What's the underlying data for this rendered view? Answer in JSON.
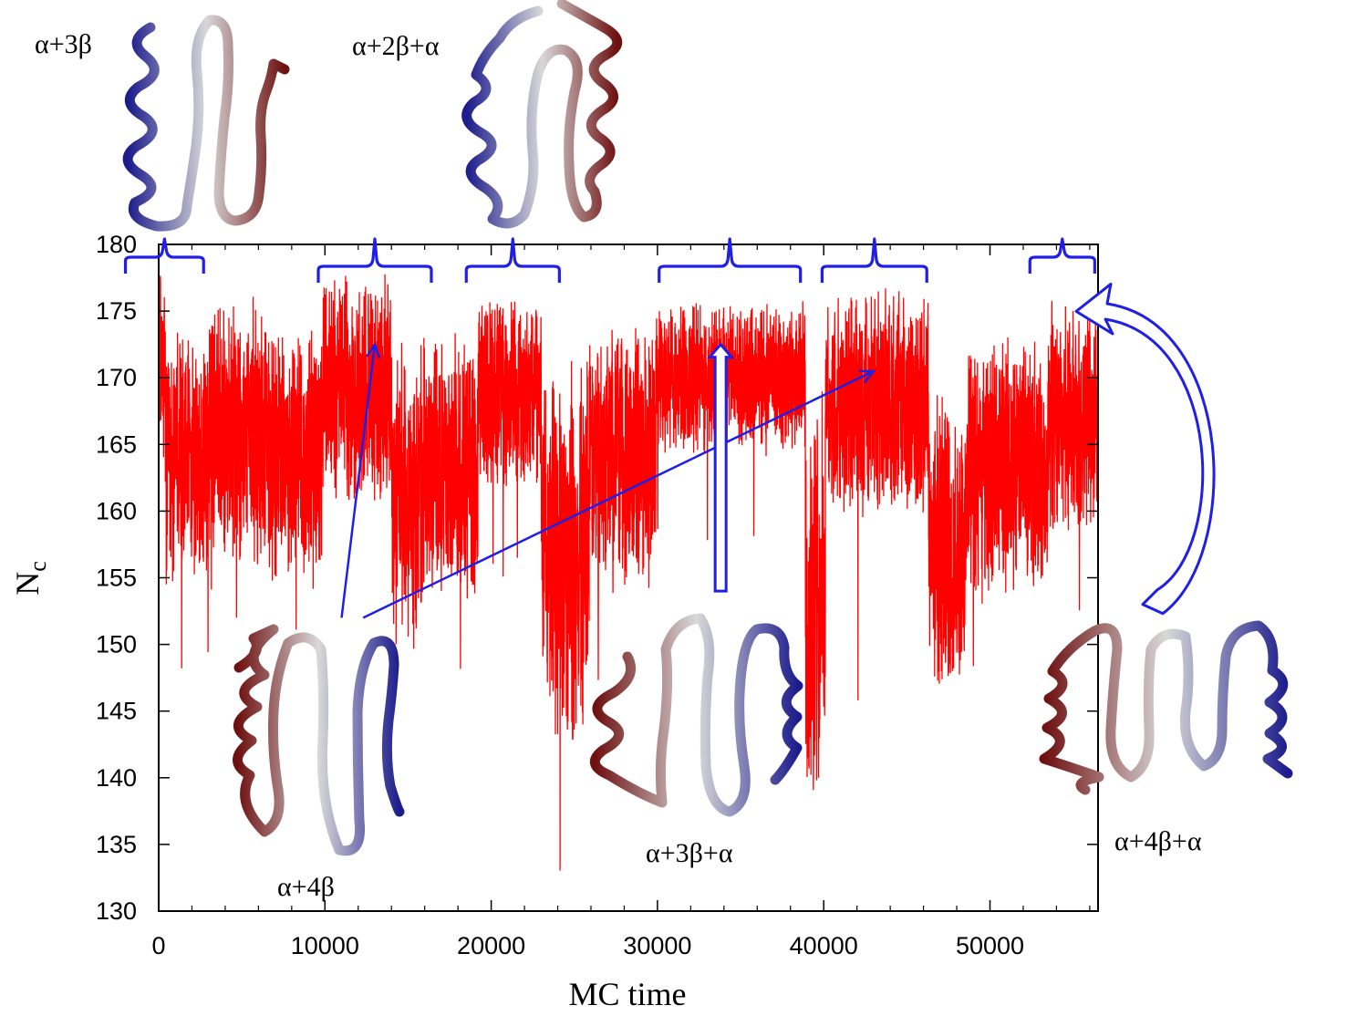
{
  "chart_data": {
    "type": "line",
    "xlabel": "MC time",
    "ylabel_main": "N",
    "ylabel_sub": "c",
    "xlim": [
      0,
      56500
    ],
    "ylim": [
      130,
      180
    ],
    "xticks": [
      0,
      10000,
      20000,
      30000,
      40000,
      50000
    ],
    "yticks": [
      130,
      135,
      140,
      145,
      150,
      155,
      160,
      165,
      170,
      175,
      180
    ],
    "grid": false,
    "series_color": "#ff0000",
    "segments": [
      {
        "x0": 0,
        "x1": 400,
        "baseline": 171,
        "spread": 5,
        "min": 149
      },
      {
        "x0": 400,
        "x1": 3200,
        "baseline": 164,
        "spread": 7,
        "min": 148
      },
      {
        "x0": 3200,
        "x1": 6600,
        "baseline": 166,
        "spread": 7,
        "min": 151
      },
      {
        "x0": 6600,
        "x1": 9800,
        "baseline": 164,
        "spread": 7,
        "min": 150
      },
      {
        "x0": 9800,
        "x1": 14000,
        "baseline": 169,
        "spread": 6,
        "min": 151
      },
      {
        "x0": 14000,
        "x1": 15900,
        "baseline": 161,
        "spread": 8,
        "min": 132
      },
      {
        "x0": 15900,
        "x1": 19200,
        "baseline": 163,
        "spread": 7,
        "min": 147
      },
      {
        "x0": 19200,
        "x1": 23000,
        "baseline": 169,
        "spread": 5,
        "min": 155
      },
      {
        "x0": 23000,
        "x1": 25900,
        "baseline": 157,
        "spread": 10,
        "min": 133
      },
      {
        "x0": 25900,
        "x1": 29900,
        "baseline": 164,
        "spread": 7,
        "min": 147
      },
      {
        "x0": 29900,
        "x1": 38900,
        "baseline": 170,
        "spread": 4,
        "min": 157
      },
      {
        "x0": 38900,
        "x1": 40100,
        "baseline": 153,
        "spread": 11,
        "min": 134
      },
      {
        "x0": 40100,
        "x1": 46300,
        "baseline": 168,
        "spread": 6,
        "min": 144
      },
      {
        "x0": 46300,
        "x1": 48500,
        "baseline": 157,
        "spread": 8,
        "min": 139
      },
      {
        "x0": 48500,
        "x1": 53500,
        "baseline": 163,
        "spread": 7,
        "min": 148
      },
      {
        "x0": 53500,
        "x1": 56500,
        "baseline": 167,
        "spread": 6,
        "min": 152
      }
    ],
    "brackets": [
      {
        "x0": -2000,
        "x1": 2700,
        "level": "upper"
      },
      {
        "x0": 9600,
        "x1": 16400,
        "level": "lower"
      },
      {
        "x0": 18500,
        "x1": 24100,
        "level": "lower"
      },
      {
        "x0": 30100,
        "x1": 38600,
        "level": "lower"
      },
      {
        "x0": 39900,
        "x1": 46200,
        "level": "lower"
      },
      {
        "x0": 52400,
        "x1": 56300,
        "level": "upper"
      }
    ],
    "bracket_color": "#1f1fe6",
    "arrows": [
      {
        "kind": "thin",
        "from": [
          11000,
          152
        ],
        "to": [
          13000,
          172.5
        ]
      },
      {
        "kind": "thin",
        "from": [
          12300,
          152
        ],
        "to": [
          43000,
          170.5
        ]
      },
      {
        "kind": "block",
        "from": [
          33800,
          154
        ],
        "to": [
          33800,
          172.5
        ]
      },
      {
        "kind": "curved",
        "from": [
          59000,
          153
        ],
        "to": [
          54800,
          175.8
        ]
      }
    ],
    "arrow_color": "#1f1fe6",
    "structure_colors": {
      "n_terminus": "#1c1c8c",
      "middle": "#d8d8d8",
      "c_terminus": "#6e1010"
    },
    "structures": [
      {
        "label": "α+3β"
      },
      {
        "label": "α+2β+α"
      },
      {
        "label": "α+4β"
      },
      {
        "label": "α+3β+α"
      },
      {
        "label": "α+4β+α"
      }
    ]
  }
}
